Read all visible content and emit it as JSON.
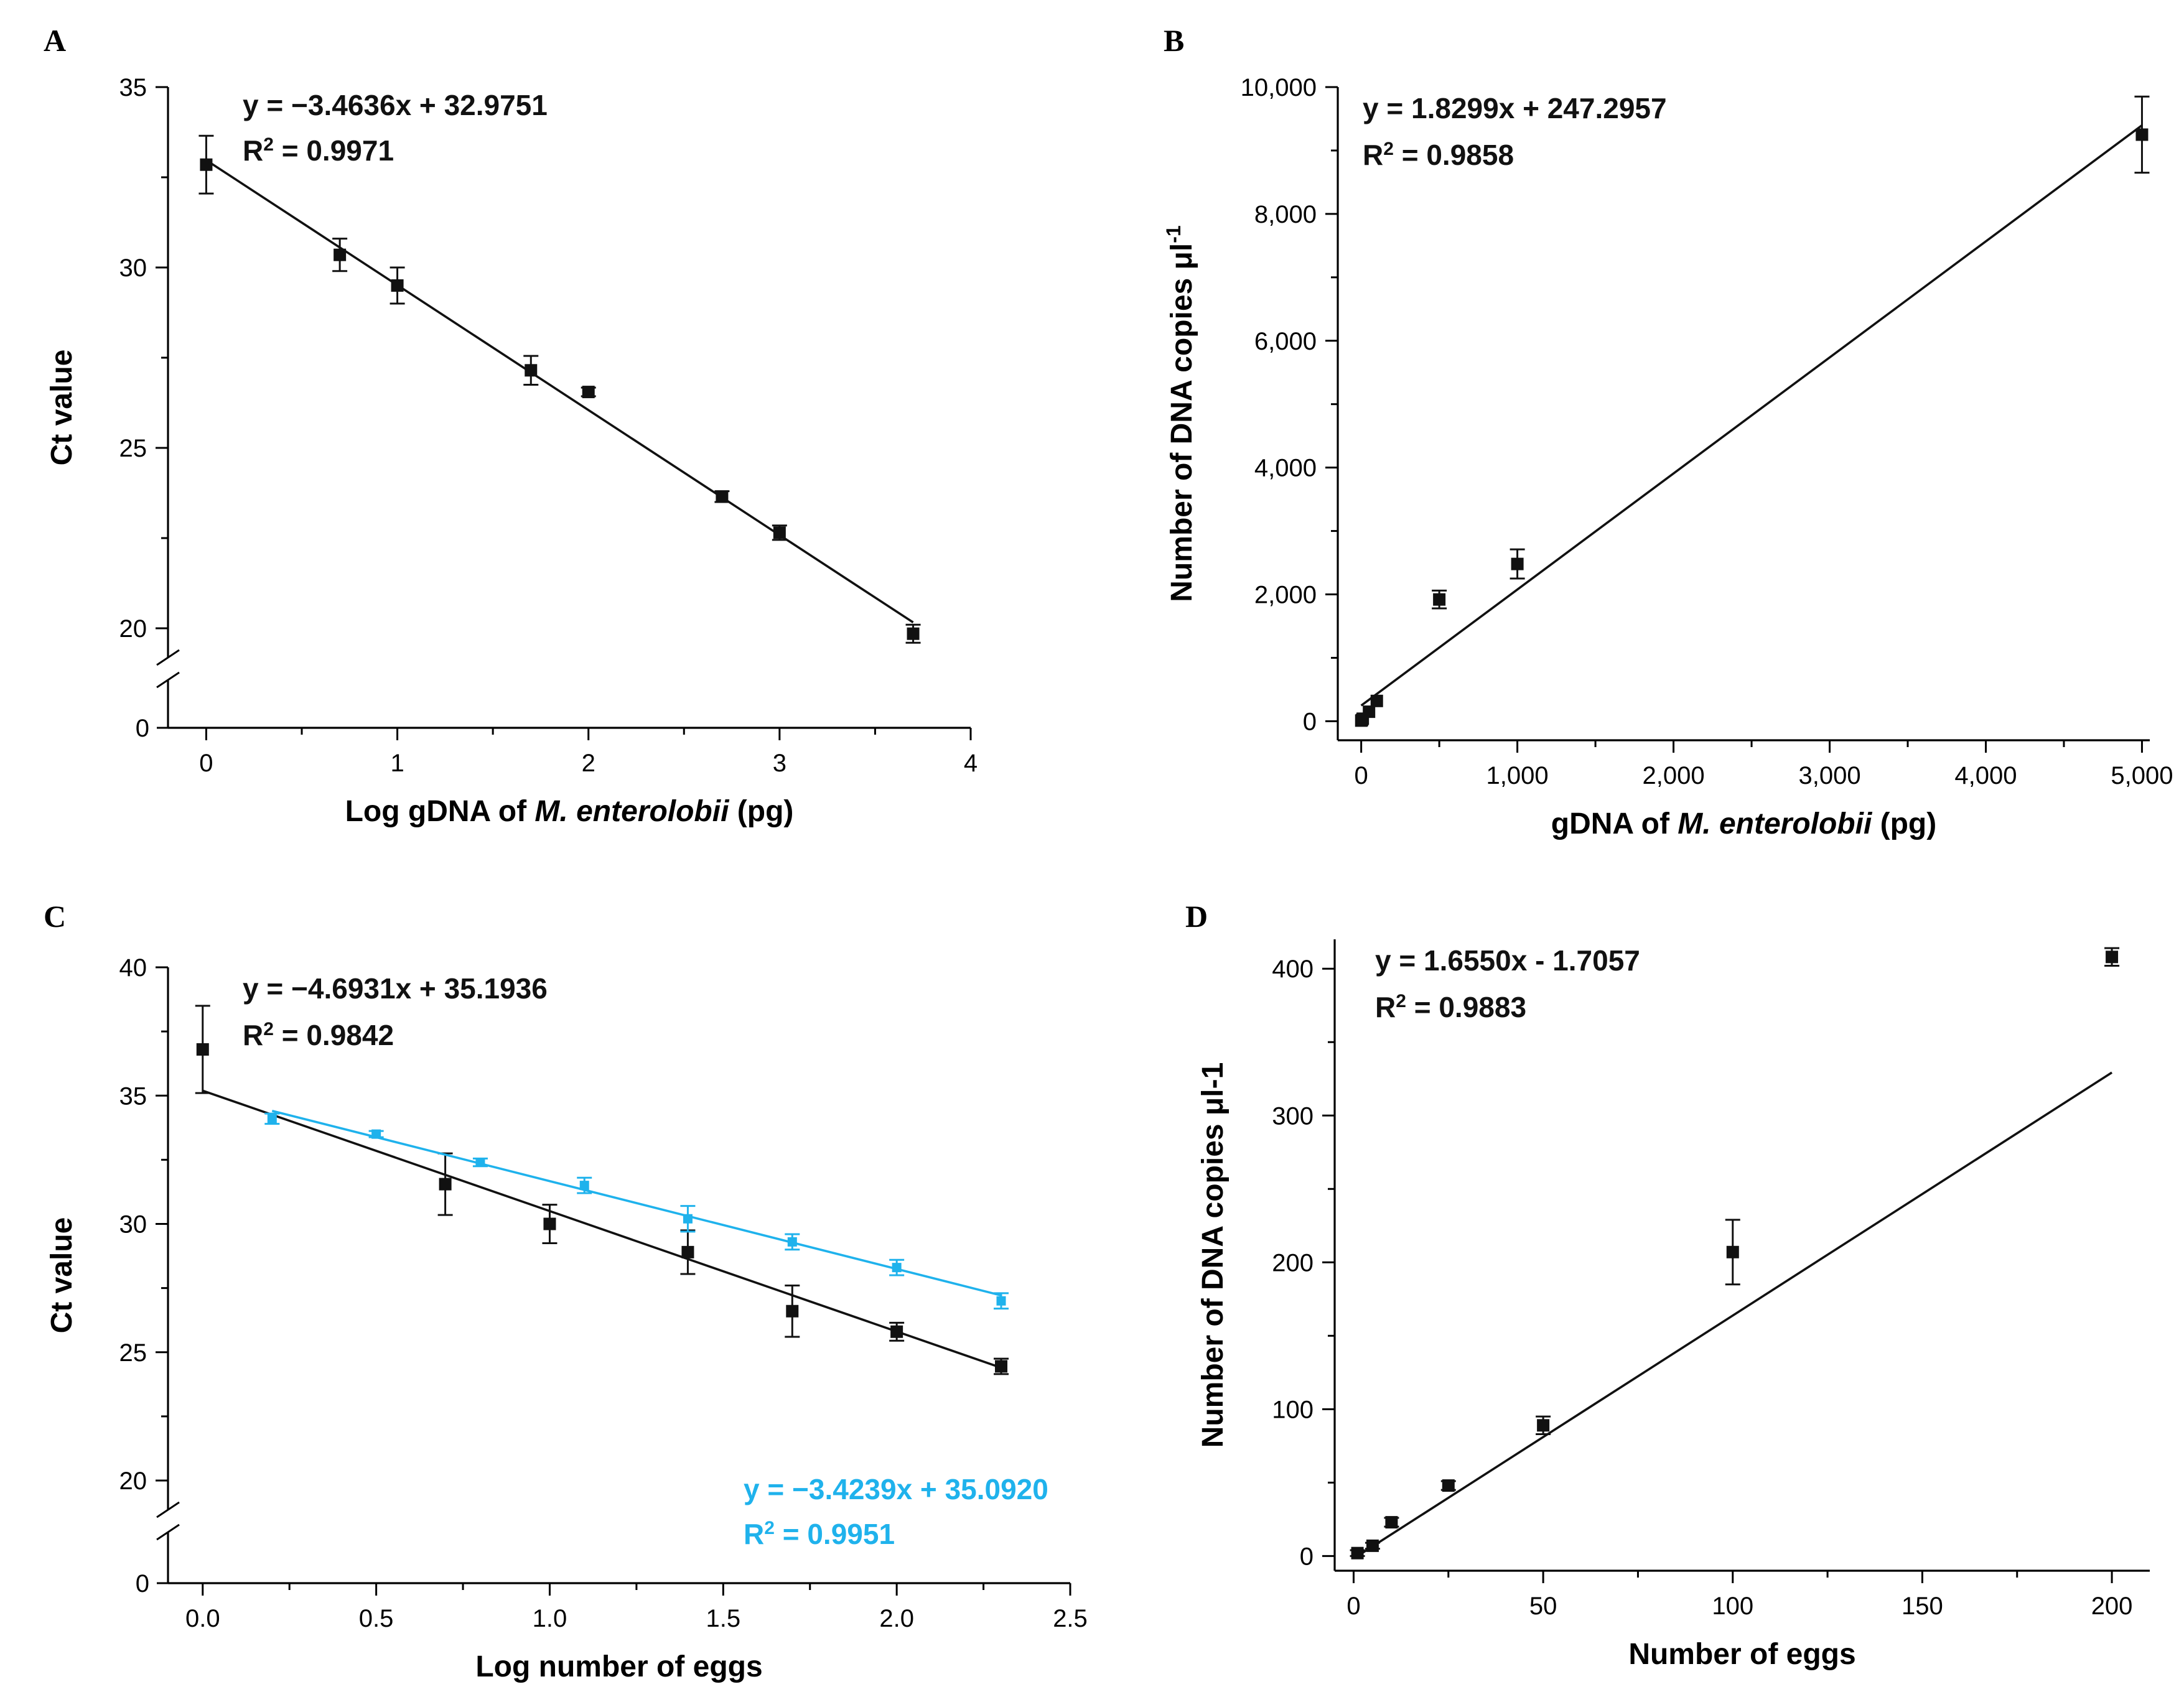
{
  "chart_data": [
    {
      "panel": "A",
      "type": "scatter",
      "xlabel_parts": [
        "Log gDNA of ",
        "M. enterolobii",
        " (pg)"
      ],
      "ylabel": "Ct value",
      "xlim": [
        -0.2,
        4
      ],
      "ylim": [
        17,
        35
      ],
      "axis_break": true,
      "xticks": [
        0,
        1,
        2,
        3,
        4
      ],
      "xtick_labels": [
        "0",
        "1",
        "2",
        "3",
        "4"
      ],
      "yticks": [
        20,
        25,
        30,
        35
      ],
      "ytick_labels": [
        "20",
        "25",
        "30",
        "35"
      ],
      "break_zero_label": "0",
      "series": [
        {
          "name": "M. enterolobii gDNA",
          "color": "#111111",
          "points": [
            {
              "x": 0,
              "y": 32.85,
              "err": 0.8
            },
            {
              "x": 0.699,
              "y": 30.35,
              "err": 0.45
            },
            {
              "x": 1,
              "y": 29.5,
              "err": 0.5
            },
            {
              "x": 1.699,
              "y": 27.15,
              "err": 0.4
            },
            {
              "x": 2,
              "y": 26.55,
              "err": 0.12
            },
            {
              "x": 2.699,
              "y": 23.65,
              "err": 0.15
            },
            {
              "x": 3,
              "y": 22.65,
              "err": 0.2
            },
            {
              "x": 3.699,
              "y": 19.85,
              "err": 0.25
            }
          ],
          "fit": {
            "slope": -3.4636,
            "intercept": 32.9751,
            "x_range": [
              0,
              3.699
            ]
          },
          "equation": "y = −3.4636x + 32.9751",
          "r2_prefix": "R",
          "r2_sup": "2",
          "r2_value": " = 0.9971"
        }
      ]
    },
    {
      "panel": "B",
      "type": "scatter",
      "xlabel_parts": [
        "gDNA of ",
        "M. enterolobii",
        " (pg)"
      ],
      "ylabel": "Number of DNA copies μl",
      "ylabel_sup": "-1",
      "xlim": [
        -150,
        5050
      ],
      "ylim": [
        -300,
        10000
      ],
      "xticks": [
        0,
        1000,
        2000,
        3000,
        4000,
        5000
      ],
      "xtick_labels": [
        "0",
        "1,000",
        "2,000",
        "3,000",
        "4,000",
        "5,000"
      ],
      "yticks": [
        0,
        2000,
        4000,
        6000,
        8000,
        10000
      ],
      "ytick_labels": [
        "0",
        "2,000",
        "4,000",
        "6,000",
        "8,000",
        "10,000"
      ],
      "series": [
        {
          "name": "DNA copies",
          "color": "#111111",
          "points": [
            {
              "x": 0.5,
              "y": 10,
              "err": 0
            },
            {
              "x": 5,
              "y": 20,
              "err": 0
            },
            {
              "x": 10,
              "y": 40,
              "err": 0
            },
            {
              "x": 50,
              "y": 150,
              "err": 0
            },
            {
              "x": 100,
              "y": 320,
              "err": 0
            },
            {
              "x": 500,
              "y": 1920,
              "err": 140
            },
            {
              "x": 1000,
              "y": 2480,
              "err": 230
            },
            {
              "x": 5000,
              "y": 9250,
              "err": 600
            }
          ],
          "fit": {
            "slope": 1.8299,
            "intercept": 247.2957,
            "x_range": [
              0,
              5000
            ]
          },
          "equation": "y = 1.8299x + 247.2957",
          "r2_prefix": "R",
          "r2_sup": "2",
          "r2_value": " = 0.9858"
        }
      ]
    },
    {
      "panel": "C",
      "type": "scatter",
      "xlabel_parts": [
        "Log number of eggs"
      ],
      "ylabel": "Ct value",
      "xlim": [
        -0.1,
        2.5
      ],
      "ylim": [
        17,
        40
      ],
      "axis_break": true,
      "xticks": [
        0,
        0.5,
        1,
        1.5,
        2,
        2.5
      ],
      "xtick_labels": [
        "0.0",
        "0.5",
        "1.0",
        "1.5",
        "2.0",
        "2.5"
      ],
      "yticks": [
        20,
        25,
        30,
        35,
        40
      ],
      "ytick_labels": [
        "20",
        "25",
        "30",
        "35",
        "40"
      ],
      "break_zero_label": "0",
      "series": [
        {
          "name": "eggs (black)",
          "color": "#111111",
          "points": [
            {
              "x": 0,
              "y": 36.8,
              "err": 1.7
            },
            {
              "x": 0.699,
              "y": 31.55,
              "err": 1.2
            },
            {
              "x": 1,
              "y": 30.0,
              "err": 0.75
            },
            {
              "x": 1.398,
              "y": 28.9,
              "err": 0.85
            },
            {
              "x": 1.699,
              "y": 26.6,
              "err": 1.0
            },
            {
              "x": 2,
              "y": 25.8,
              "err": 0.35
            },
            {
              "x": 2.301,
              "y": 24.45,
              "err": 0.3
            }
          ],
          "fit": {
            "slope": -4.6931,
            "intercept": 35.1936,
            "x_range": [
              0,
              2.301
            ]
          },
          "equation": "y = −4.6931x + 35.1936",
          "r2_prefix": "R",
          "r2_sup": "2",
          "r2_value": " = 0.9842"
        },
        {
          "name": "eggs (blue)",
          "color": "#1FB2EC",
          "points": [
            {
              "x": 0.2,
              "y": 34.1,
              "err": 0.2
            },
            {
              "x": 0.5,
              "y": 33.5,
              "err": 0.12
            },
            {
              "x": 0.8,
              "y": 32.4,
              "err": 0.15
            },
            {
              "x": 1.1,
              "y": 31.5,
              "err": 0.3
            },
            {
              "x": 1.398,
              "y": 30.2,
              "err": 0.5
            },
            {
              "x": 1.699,
              "y": 29.3,
              "err": 0.3
            },
            {
              "x": 2,
              "y": 28.3,
              "err": 0.3
            },
            {
              "x": 2.301,
              "y": 27.0,
              "err": 0.3
            }
          ],
          "fit": {
            "slope": -3.4239,
            "intercept": 35.092,
            "x_range": [
              0.2,
              2.301
            ]
          },
          "equation": "y = −3.4239x + 35.0920",
          "r2_prefix": "R",
          "r2_sup": "2",
          "r2_value": " = 0.9951"
        }
      ]
    },
    {
      "panel": "D",
      "type": "scatter",
      "xlabel_parts": [
        "Number of eggs"
      ],
      "ylabel": "Number of DNA copies μl-1",
      "xlim": [
        -5,
        210
      ],
      "ylim": [
        -10,
        420
      ],
      "xticks": [
        0,
        50,
        100,
        150,
        200
      ],
      "xtick_labels": [
        "0",
        "50",
        "100",
        "150",
        "200"
      ],
      "yticks": [
        0,
        100,
        200,
        300,
        400
      ],
      "ytick_labels": [
        "0",
        "100",
        "200",
        "300",
        "400"
      ],
      "series": [
        {
          "name": "DNA copies",
          "color": "#111111",
          "points": [
            {
              "x": 1,
              "y": 2,
              "err": 2
            },
            {
              "x": 5,
              "y": 7,
              "err": 2
            },
            {
              "x": 10,
              "y": 23,
              "err": 3
            },
            {
              "x": 25,
              "y": 48,
              "err": 3
            },
            {
              "x": 50,
              "y": 89,
              "err": 6
            },
            {
              "x": 100,
              "y": 207,
              "err": 22
            },
            {
              "x": 200,
              "y": 408,
              "err": 6
            }
          ],
          "fit": {
            "slope": 1.655,
            "intercept": -1.7057,
            "x_range": [
              1,
              200
            ]
          },
          "equation": "y = 1.6550x - 1.7057",
          "r2_prefix": "R",
          "r2_sup": "2",
          "r2_value": " = 0.9883"
        }
      ]
    }
  ]
}
